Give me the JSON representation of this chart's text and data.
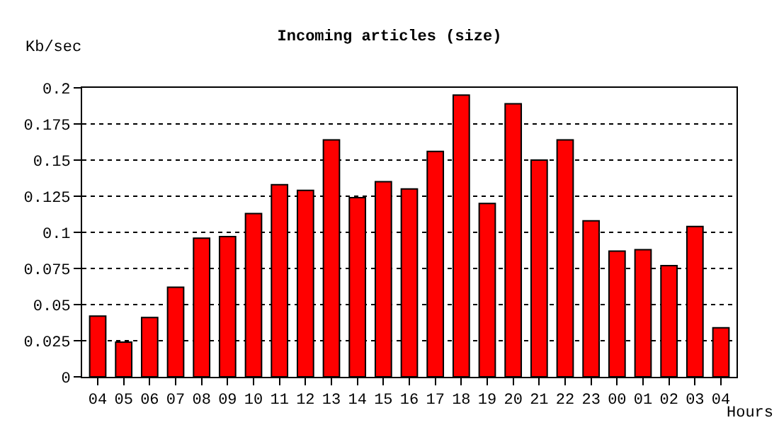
{
  "chart_data": {
    "type": "bar",
    "title": "Incoming articles (size)",
    "xlabel": "Hours",
    "ylabel": "Kb/sec",
    "categories": [
      "04",
      "05",
      "06",
      "07",
      "08",
      "09",
      "10",
      "11",
      "12",
      "13",
      "14",
      "15",
      "16",
      "17",
      "18",
      "19",
      "20",
      "21",
      "22",
      "23",
      "00",
      "01",
      "02",
      "03",
      "04"
    ],
    "values": [
      0.042,
      0.024,
      0.041,
      0.062,
      0.096,
      0.097,
      0.113,
      0.133,
      0.129,
      0.164,
      0.124,
      0.135,
      0.13,
      0.156,
      0.195,
      0.12,
      0.189,
      0.15,
      0.164,
      0.108,
      0.087,
      0.088,
      0.077,
      0.104,
      0.034
    ],
    "color": "#ff0000",
    "ylim": [
      0,
      0.2
    ],
    "yticks": [
      0,
      0.025,
      0.05,
      0.075,
      0.1,
      0.125,
      0.15,
      0.175,
      0.2
    ],
    "grid": "y",
    "line_style": "dotted"
  }
}
